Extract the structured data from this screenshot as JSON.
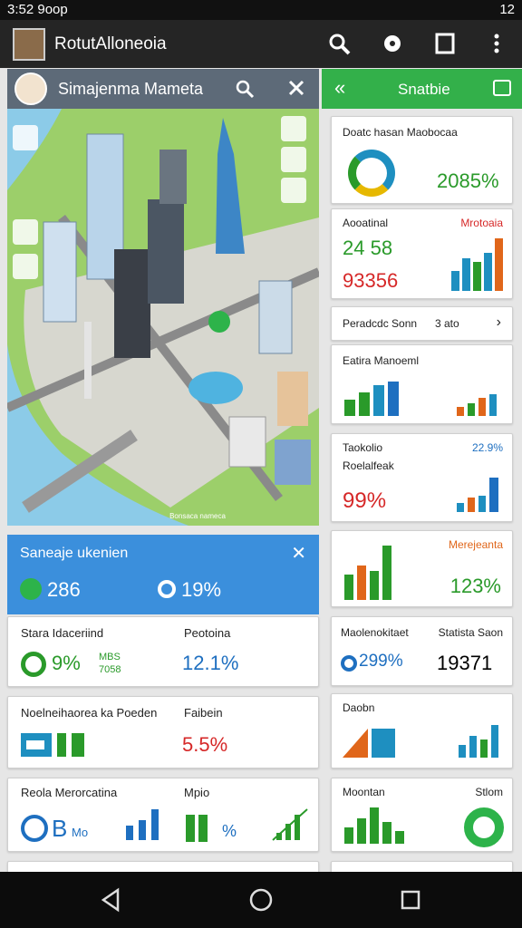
{
  "status_bar": {
    "time": "3:52 9oop",
    "battery": "12"
  },
  "app_bar": {
    "title": "RotutAlloneoia"
  },
  "left_panel": {
    "header": {
      "title": "Simajenma Mameta"
    },
    "map": {
      "caption": "Bonsaca nameca"
    },
    "summary": {
      "title": "Saneaje ukenien",
      "stat_1": "286",
      "stat_2": "19%"
    },
    "cards": [
      {
        "title": "Stara Idaceriind",
        "value": "9%",
        "note_1": "MBS",
        "note_2": "7058",
        "title_2": "Peotoina",
        "value_2": "12.1%"
      },
      {
        "title": "Noelneihaorea ka Poeden",
        "title_2": "Faibein",
        "value_2": "5.5%"
      },
      {
        "title": "Reola Merorcatina",
        "value": "B",
        "note_1": "Mo",
        "title_2": "Mpio",
        "value_2": "%"
      }
    ]
  },
  "right_panel": {
    "header": {
      "title": "Snatbie"
    },
    "cards": [
      {
        "title": "Doatc hasan Maobocaa",
        "value": "2085%"
      },
      {
        "title": "Aooatinal",
        "title_2": "Mrotoaia",
        "value": "24 58",
        "value_2": "93356"
      },
      {
        "title": "Peradcdc Sonn",
        "value": "3 ato"
      },
      {
        "title": "Eatira Manoeml"
      },
      {
        "title": "Taokolio",
        "title_2": "Roelalfeak",
        "note_1": "22.9%",
        "value": "99%"
      },
      {
        "title": "Merejeanta",
        "value": "123%"
      },
      {
        "title": "Maolenokitaet",
        "title_2": "Statista Saon",
        "value": "299%",
        "value_2": "19371"
      },
      {
        "title": "Daobn"
      },
      {
        "title": "Moontan",
        "title_2": "Stlom"
      }
    ]
  }
}
